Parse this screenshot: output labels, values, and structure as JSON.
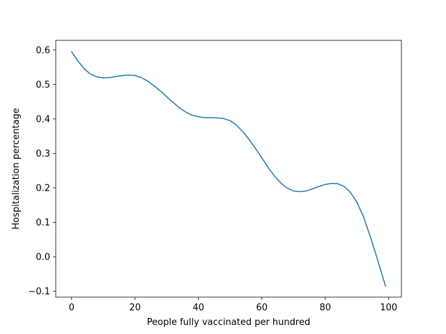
{
  "chart_data": {
    "type": "line",
    "title": "",
    "xlabel": "People fully vaccinated per hundred",
    "ylabel": "Hospitalization percentage",
    "xlim": [
      -5,
      104
    ],
    "ylim": [
      -0.117,
      0.628
    ],
    "grid": false,
    "legend": "none",
    "series_color": "#1f77b4",
    "xticks": [
      0,
      20,
      40,
      60,
      80,
      100
    ],
    "xtick_labels": [
      "0",
      "20",
      "40",
      "60",
      "80",
      "100"
    ],
    "yticks": [
      -0.1,
      0.0,
      0.1,
      0.2,
      0.3,
      0.4,
      0.5,
      0.6
    ],
    "ytick_labels": [
      "−0.1",
      "0.0",
      "0.1",
      "0.2",
      "0.3",
      "0.4",
      "0.5",
      "0.6"
    ],
    "series": [
      {
        "x": [
          0,
          2,
          4,
          6,
          8,
          10,
          12,
          14,
          16,
          18,
          20,
          22,
          24,
          26,
          28,
          30,
          32,
          34,
          36,
          38,
          40,
          42,
          44,
          46,
          48,
          50,
          52,
          54,
          56,
          58,
          60,
          62,
          64,
          66,
          68,
          70,
          72,
          74,
          76,
          78,
          80,
          82,
          84,
          86,
          88,
          90,
          92,
          94,
          96,
          99
        ],
        "y": [
          0.595,
          0.568,
          0.545,
          0.53,
          0.522,
          0.519,
          0.52,
          0.523,
          0.526,
          0.527,
          0.526,
          0.52,
          0.51,
          0.496,
          0.481,
          0.464,
          0.448,
          0.432,
          0.42,
          0.411,
          0.406,
          0.404,
          0.404,
          0.403,
          0.401,
          0.395,
          0.382,
          0.363,
          0.34,
          0.314,
          0.287,
          0.259,
          0.234,
          0.214,
          0.199,
          0.191,
          0.189,
          0.191,
          0.197,
          0.204,
          0.21,
          0.213,
          0.212,
          0.204,
          0.186,
          0.158,
          0.117,
          0.064,
          0.006,
          -0.085
        ]
      }
    ]
  }
}
